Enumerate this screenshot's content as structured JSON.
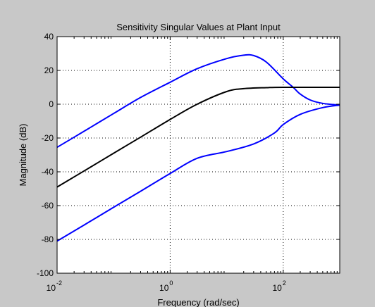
{
  "chart_data": {
    "type": "line",
    "title": "Sensitivity  Singular Values at Plant Input",
    "xlabel": "Frequency (rad/sec)",
    "ylabel": "Magnitude (dB)",
    "xscale": "log",
    "xlim": [
      0.01,
      1000
    ],
    "ylim": [
      -100,
      40
    ],
    "grid": true,
    "x_ticks": [
      {
        "base": "10",
        "exp": "-2",
        "value": 0.01
      },
      {
        "base": "10",
        "exp": "0",
        "value": 1
      },
      {
        "base": "10",
        "exp": "2",
        "value": 100
      }
    ],
    "y_ticks": [
      "40",
      "20",
      "0",
      "-20",
      "-40",
      "-60",
      "-80",
      "-100"
    ],
    "series": [
      {
        "color": "#0000ff",
        "points": [
          [
            0.01,
            -25.5
          ],
          [
            0.03,
            -16
          ],
          [
            0.1,
            -5.5
          ],
          [
            0.3,
            4
          ],
          [
            1,
            13
          ],
          [
            3,
            21
          ],
          [
            10,
            27
          ],
          [
            20,
            29
          ],
          [
            30,
            28.8
          ],
          [
            50,
            25
          ],
          [
            100,
            15
          ],
          [
            150,
            10
          ],
          [
            200,
            6
          ],
          [
            300,
            2.5
          ],
          [
            500,
            0.5
          ],
          [
            1000,
            -0.5
          ]
        ]
      },
      {
        "color": "#000000",
        "points": [
          [
            0.01,
            -49
          ],
          [
            0.03,
            -39.5
          ],
          [
            0.1,
            -29
          ],
          [
            0.3,
            -19.5
          ],
          [
            1,
            -9
          ],
          [
            3,
            0
          ],
          [
            10,
            7.5
          ],
          [
            20,
            9.2
          ],
          [
            50,
            9.8
          ],
          [
            100,
            10
          ],
          [
            1000,
            10
          ]
        ]
      },
      {
        "color": "#0000ff",
        "points": [
          [
            0.01,
            -81
          ],
          [
            0.03,
            -71.5
          ],
          [
            0.1,
            -61
          ],
          [
            0.3,
            -51.5
          ],
          [
            1,
            -41
          ],
          [
            3,
            -32
          ],
          [
            10,
            -28
          ],
          [
            30,
            -23.5
          ],
          [
            70,
            -17
          ],
          [
            100,
            -12
          ],
          [
            200,
            -6
          ],
          [
            500,
            -2
          ],
          [
            1000,
            -0.5
          ]
        ]
      }
    ]
  }
}
